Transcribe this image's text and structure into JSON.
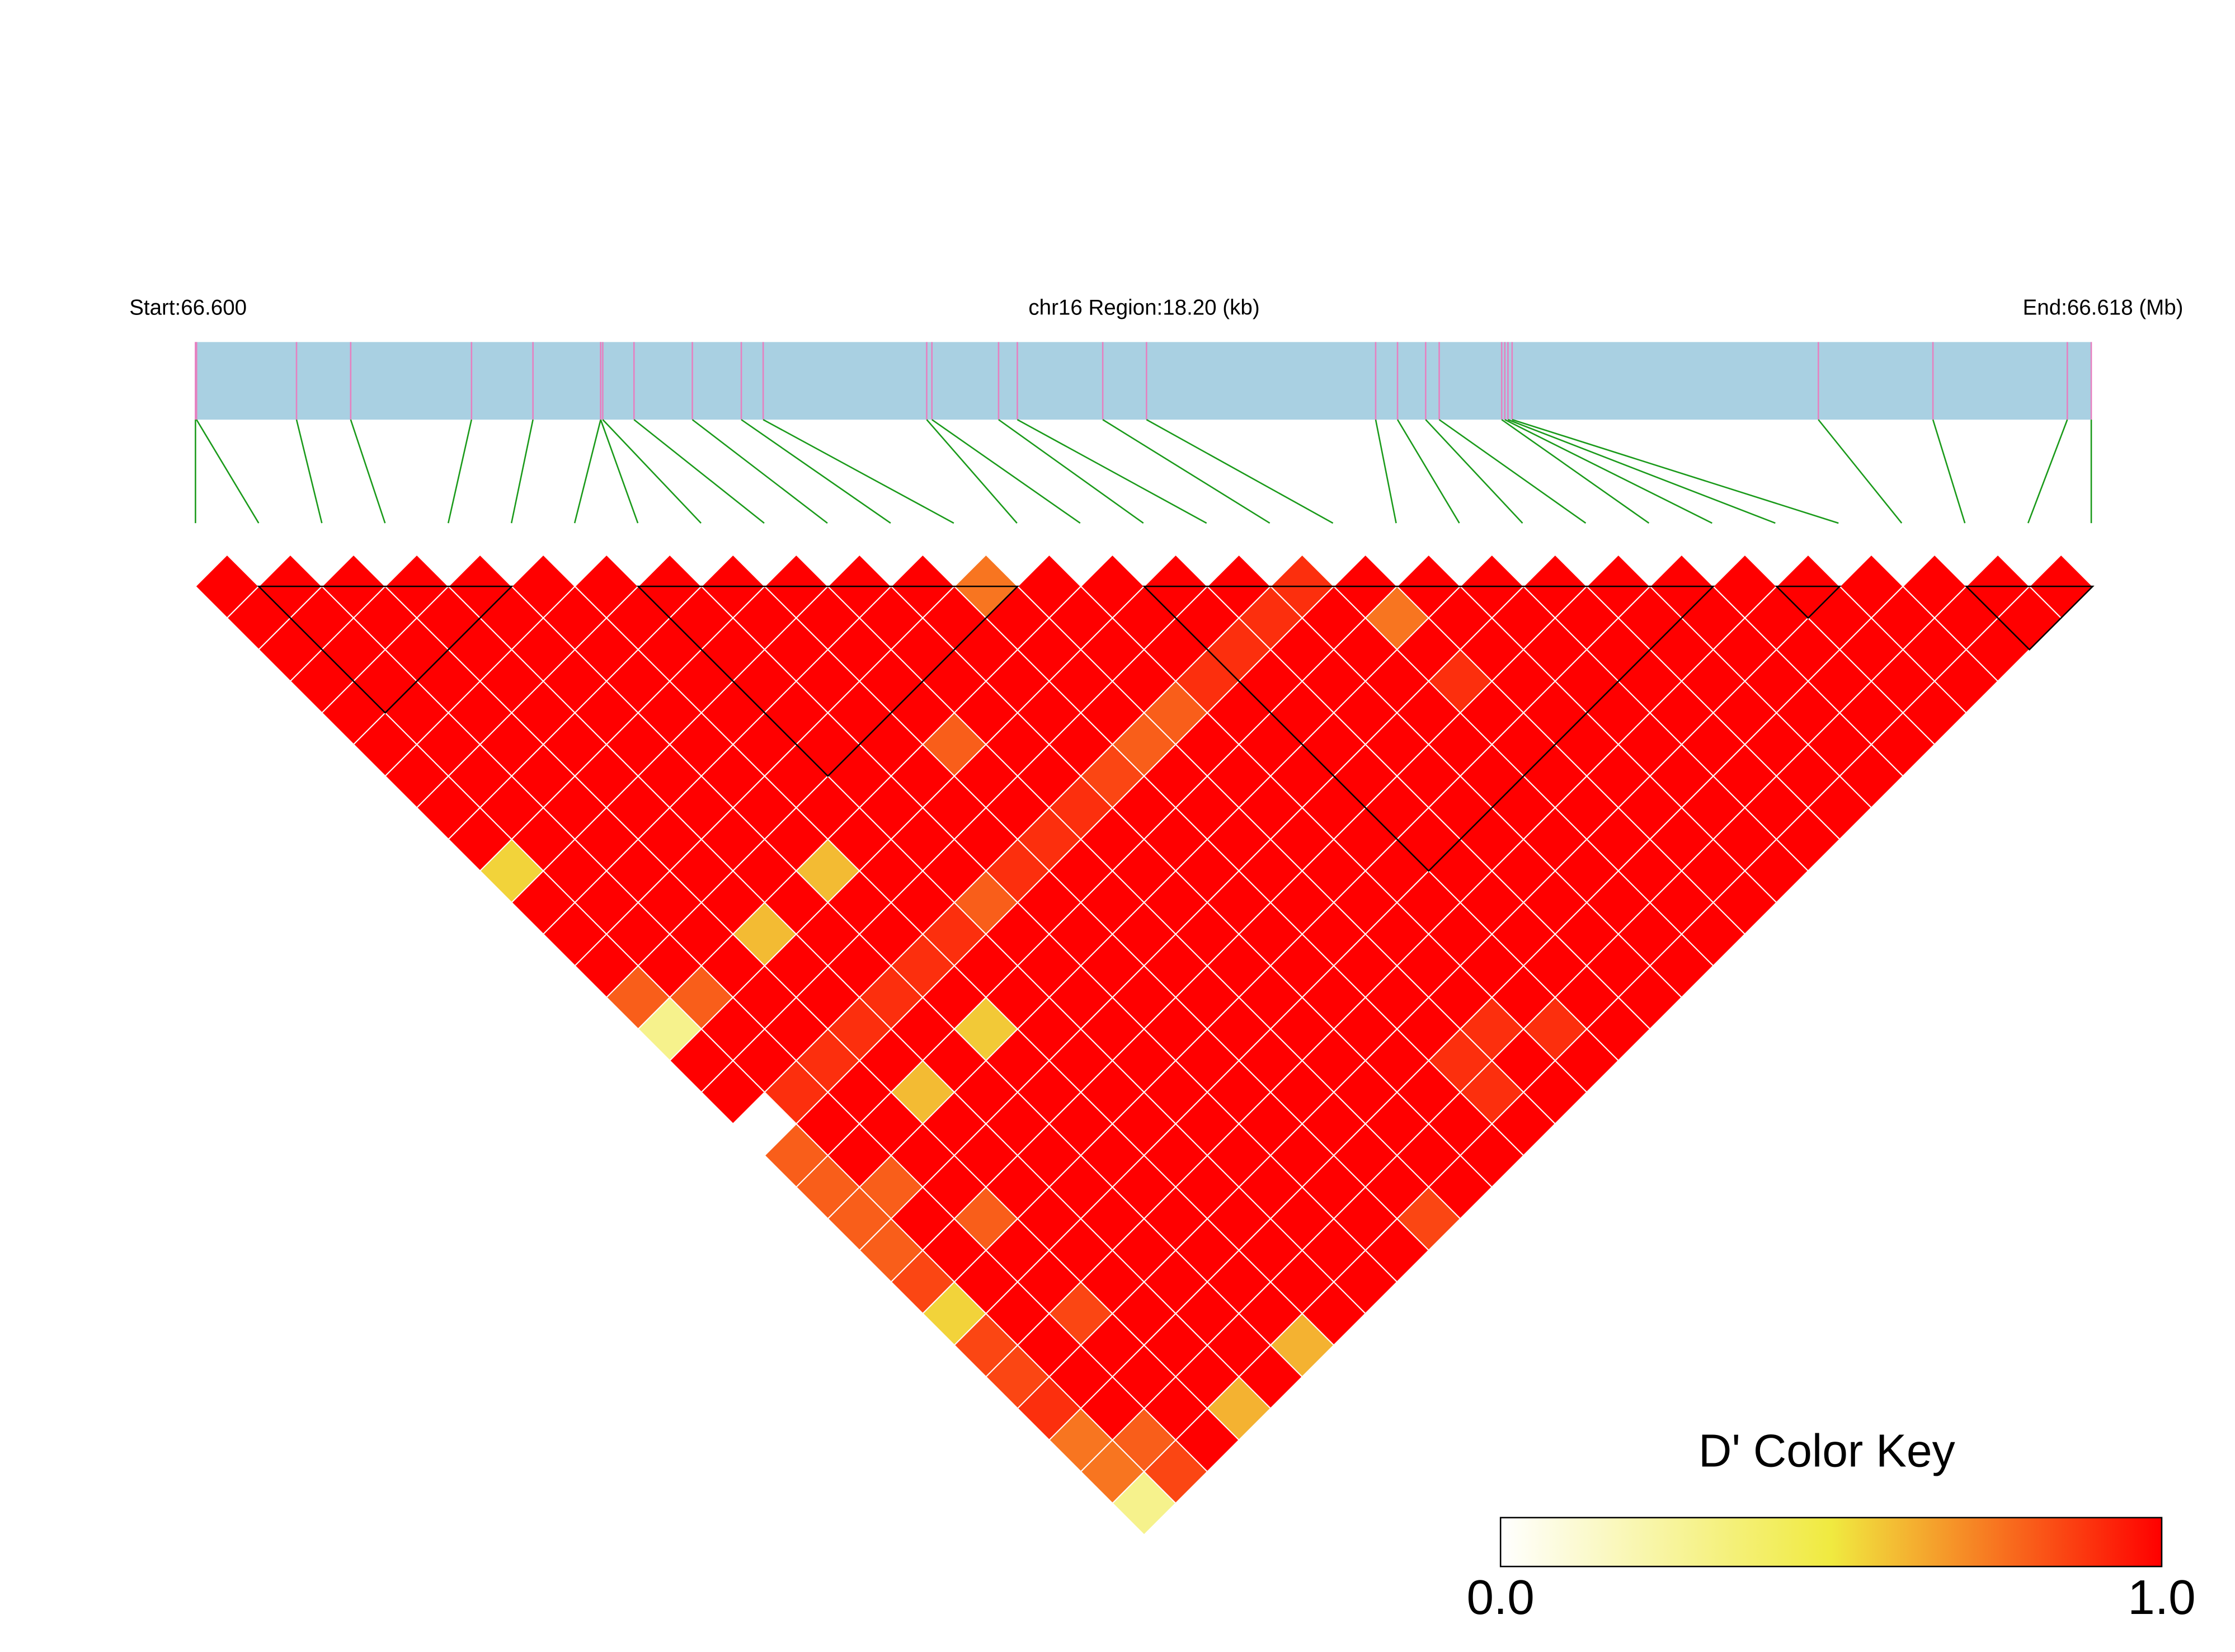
{
  "chart_data": {
    "type": "ld_heatmap",
    "start_label": "Start:66.600",
    "region_label": "chr16 Region:18.20 (kb)",
    "end_label": "End:66.618 (Mb)",
    "xlim": [
      66.6,
      66.6182
    ],
    "snp_positions": [
      66.6,
      66.60001,
      66.60097,
      66.60149,
      66.60265,
      66.60324,
      66.60389,
      66.60389,
      66.60391,
      66.60421,
      66.60477,
      66.60524,
      66.60545,
      66.60702,
      66.60707,
      66.60771,
      66.60789,
      66.60871,
      66.60913,
      66.61133,
      66.61154,
      66.61181,
      66.61194,
      66.61254,
      66.61257,
      66.6126,
      66.61264,
      66.61558,
      66.61668,
      66.61797,
      66.6182
    ],
    "values": [
      [
        1,
        1,
        1,
        1,
        1,
        1,
        1,
        1,
        1,
        0.55,
        1,
        1,
        1,
        0.8,
        0.3,
        1,
        1,
        null,
        0.8,
        0.8,
        0.8,
        0.8,
        0.85,
        0.55,
        0.85,
        0.85,
        0.9,
        0.75,
        0.75,
        0.3
      ],
      [
        1,
        1,
        1,
        1,
        1,
        1,
        1,
        1,
        1,
        1,
        1,
        1,
        1,
        0.8,
        1,
        1,
        0.9,
        1,
        1,
        0.8,
        1,
        1,
        1,
        1,
        1,
        1,
        1,
        0.8,
        0.85
      ],
      [
        1,
        1,
        1,
        1,
        1,
        1,
        1,
        1,
        1,
        1,
        1,
        1,
        1,
        1,
        1,
        0.9,
        1,
        1,
        1,
        1,
        0.8,
        1,
        1,
        0.85,
        1,
        1,
        1,
        1
      ],
      [
        1,
        1,
        1,
        1,
        1,
        1,
        1,
        1,
        1,
        1,
        1,
        0.6,
        1,
        1,
        0.9,
        1,
        0.6,
        1,
        1,
        1,
        1,
        1,
        1,
        1,
        1,
        1,
        0.62
      ],
      [
        1,
        1,
        1,
        1,
        1,
        1,
        1,
        1,
        1,
        1,
        1,
        1,
        1,
        0.9,
        1,
        1,
        1,
        1,
        1,
        1,
        1,
        1,
        1,
        1,
        1,
        1
      ],
      [
        1,
        1,
        1,
        1,
        1,
        1,
        1,
        1,
        1,
        0.6,
        1,
        1,
        0.9,
        1,
        0.57,
        1,
        1,
        1,
        1,
        1,
        1,
        1,
        1,
        1,
        0.62
      ],
      [
        1,
        1,
        1,
        1,
        1,
        1,
        1,
        1,
        1,
        1,
        1,
        0.9,
        1,
        1,
        1,
        1,
        1,
        1,
        1,
        1,
        1,
        1,
        1,
        1
      ],
      [
        1,
        1,
        1,
        1,
        1,
        1,
        1,
        1,
        1,
        1,
        0.8,
        1,
        1,
        1,
        1,
        1,
        1,
        1,
        1,
        1,
        1,
        1,
        1
      ],
      [
        1,
        1,
        1,
        1,
        1,
        1,
        1,
        1,
        1,
        0.9,
        1,
        1,
        1,
        1,
        1,
        1,
        1,
        1,
        1,
        1,
        1,
        1
      ],
      [
        1,
        1,
        1,
        1,
        1,
        0.8,
        1,
        1,
        0.9,
        1,
        1,
        1,
        1,
        1,
        1,
        1,
        1,
        1,
        1,
        1,
        0.85
      ],
      [
        1,
        1,
        1,
        1,
        1,
        1,
        1,
        0.9,
        1,
        1,
        1,
        1,
        1,
        1,
        1,
        1,
        1,
        1,
        1,
        1
      ],
      [
        1,
        1,
        1,
        1,
        1,
        1,
        0.85,
        1,
        1,
        1,
        1,
        1,
        1,
        1,
        1,
        1,
        1,
        1,
        1
      ],
      [
        0.75,
        1,
        1,
        1,
        1,
        0.8,
        1,
        1,
        1,
        1,
        1,
        1,
        1,
        1,
        1,
        0.9,
        0.9,
        1
      ],
      [
        1,
        1,
        1,
        1,
        0.8,
        1,
        1,
        1,
        1,
        1,
        1,
        1,
        1,
        1,
        0.9,
        1,
        1
      ],
      [
        1,
        1,
        1,
        0.9,
        1,
        1,
        1,
        1,
        1,
        1,
        1,
        1,
        1,
        1,
        0.9,
        1
      ],
      [
        1,
        1,
        0.9,
        1,
        1,
        1,
        1,
        1,
        1,
        1,
        1,
        1,
        1,
        1,
        1
      ],
      [
        1,
        0.9,
        1,
        1,
        1,
        1,
        1,
        1,
        1,
        1,
        1,
        1,
        1,
        1
      ],
      [
        0.9,
        1,
        1,
        1,
        1,
        1,
        1,
        1,
        1,
        1,
        1,
        1,
        1
      ],
      [
        1,
        0.75,
        1,
        0.9,
        1,
        1,
        1,
        1,
        1,
        1,
        1,
        1
      ],
      [
        1,
        1,
        1,
        1,
        1,
        1,
        1,
        1,
        1,
        1,
        1
      ],
      [
        1,
        1,
        1,
        1,
        1,
        1,
        1,
        1,
        1,
        1
      ],
      [
        1,
        1,
        1,
        1,
        1,
        1,
        1,
        1,
        1
      ],
      [
        1,
        1,
        1,
        1,
        1,
        1,
        1,
        1
      ],
      [
        1,
        1,
        1,
        1,
        1,
        1,
        1
      ],
      [
        1,
        1,
        1,
        1,
        1,
        1
      ],
      [
        1,
        1,
        1,
        1,
        1
      ],
      [
        1,
        1,
        1,
        1
      ],
      [
        1,
        1,
        1
      ],
      [
        1,
        1
      ],
      [
        1
      ]
    ],
    "blocks": [
      [
        1,
        5
      ],
      [
        7,
        13
      ],
      [
        15,
        24
      ],
      [
        25,
        26
      ],
      [
        28,
        30
      ]
    ],
    "colorbar": {
      "title": "D' Color Key",
      "lim": [
        0,
        1
      ],
      "ticks": [
        {
          "value": 0,
          "label": "0.0"
        },
        {
          "value": 1,
          "label": "1.0"
        }
      ],
      "colors": [
        "#ffffff",
        "#f0ea40",
        "#ff0000"
      ]
    },
    "region_color": "#a9d0e2",
    "snp_line_color": "#e680c0",
    "link_color": "#1a9a1a",
    "block_color": "#000000"
  }
}
